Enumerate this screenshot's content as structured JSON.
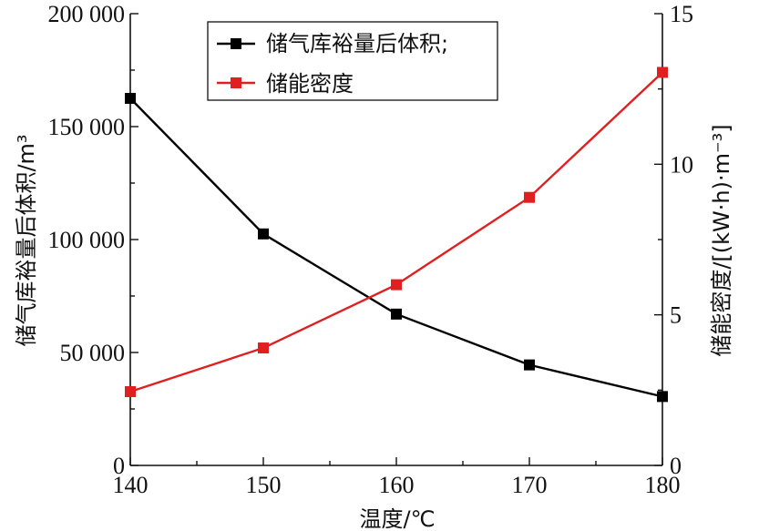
{
  "chart_data": {
    "type": "line",
    "x": [
      140,
      150,
      160,
      170,
      180
    ],
    "xlabel": "温度/℃",
    "ylabel_left": "储气库裕量后体积/m³",
    "ylabel_right": "储能密度/[(kW·h)·m⁻³]",
    "xlim": [
      140,
      180
    ],
    "ylim_left": [
      0,
      200000
    ],
    "ylim_right": [
      0,
      15
    ],
    "x_ticks": [
      "140",
      "150",
      "160",
      "170",
      "180"
    ],
    "y_left_ticks": [
      "0",
      "50 000",
      "100 000",
      "150 000",
      "200 000"
    ],
    "y_right_ticks": [
      "0",
      "5",
      "10",
      "15"
    ],
    "grid": false,
    "legend_position": "top-center",
    "series": [
      {
        "name": "储气库裕量后体积;",
        "axis": "left",
        "color": "#000000",
        "marker": "square",
        "values": [
          162500,
          102500,
          67000,
          44500,
          30500
        ]
      },
      {
        "name": "储能密度",
        "axis": "right",
        "color": "#e02020",
        "marker": "square",
        "values": [
          2.45,
          3.9,
          6.0,
          8.9,
          13.05
        ]
      }
    ]
  }
}
